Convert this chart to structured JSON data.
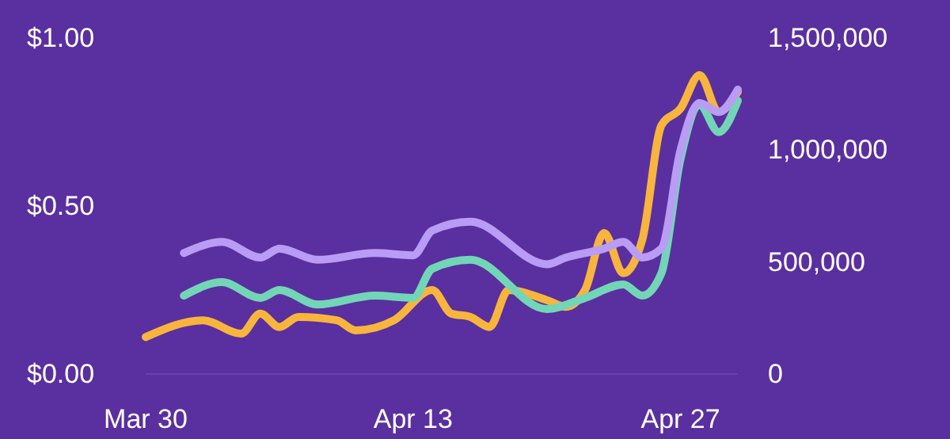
{
  "chart_data": {
    "type": "line",
    "xlim": [
      "--03-30",
      "--04-30"
    ],
    "xticks": [
      {
        "value": "--03-30",
        "label": "Mar 30"
      },
      {
        "value": "--04-13",
        "label": "Apr 13"
      },
      {
        "value": "--04-27",
        "label": "Apr 27"
      }
    ],
    "ylim": [
      0,
      1
    ],
    "yticks": [
      {
        "value": 0,
        "label": "$0.00"
      },
      {
        "value": 0.5,
        "label": "$0.50"
      },
      {
        "value": 1,
        "label": "$1.00"
      }
    ],
    "y2lim": [
      0,
      1500000
    ],
    "y2ticks": [
      0,
      {
        "value": 500000,
        "label": "500,000"
      },
      {
        "value": 1000000,
        "label": "1,000,000"
      },
      {
        "value": 1500000,
        "label": "1,500,000"
      }
    ],
    "series": [
      {
        "color": "#f7b53e",
        "x": [
          "--03-30",
          "--04-02",
          "--04-04",
          "--04-05",
          "--04-06",
          "--04-07",
          "--04-09",
          "--04-10",
          "--04-12",
          "--04-14",
          "--04-15",
          "--04-16",
          "--04-17",
          "--04-18",
          "--04-20",
          "--04-21",
          "--04-22",
          "--04-23",
          "--04-24",
          "--04-25",
          "--04-26",
          "--04-27",
          "--04-28",
          "--04-29",
          "--04-30"
        ],
        "values": [
          0.11,
          0.16,
          0.12,
          0.18,
          0.14,
          0.17,
          0.16,
          0.13,
          0.16,
          0.25,
          0.18,
          0.17,
          0.14,
          0.25,
          0.22,
          0.2,
          0.25,
          0.42,
          0.3,
          0.4,
          0.74,
          0.79,
          0.89,
          0.78,
          0.84
        ]
      },
      {
        "color": "#72d6b6",
        "axis": "y2",
        "x": [
          "--04-01",
          "--04-03",
          "--04-05",
          "--04-06",
          "--04-08",
          "--04-11",
          "--04-13",
          "--04-14",
          "--04-16",
          "--04-20",
          "--04-22",
          "--04-24",
          "--04-25",
          "--04-26",
          "--04-27",
          "--04-28",
          "--04-29",
          "--04-30"
        ],
        "values": [
          350000,
          410000,
          340000,
          375000,
          310000,
          350000,
          340000,
          470000,
          510000,
          290000,
          340000,
          400000,
          350000,
          450000,
          960000,
          1200000,
          1080000,
          1220000
        ]
      },
      {
        "color": "#b99cf4",
        "axis": "y2",
        "x": [
          "--04-01",
          "--04-03",
          "--04-05",
          "--04-06",
          "--04-08",
          "--04-11",
          "--04-13",
          "--04-14",
          "--04-16",
          "--04-20",
          "--04-21",
          "--04-23",
          "--04-24",
          "--04-25",
          "--04-26",
          "--04-27",
          "--04-28",
          "--04-29",
          "--04-30"
        ],
        "values": [
          540000,
          590000,
          520000,
          560000,
          510000,
          540000,
          530000,
          640000,
          680000,
          490000,
          520000,
          560000,
          590000,
          520000,
          560000,
          1000000,
          1210000,
          1170000,
          1270000
        ]
      }
    ]
  }
}
